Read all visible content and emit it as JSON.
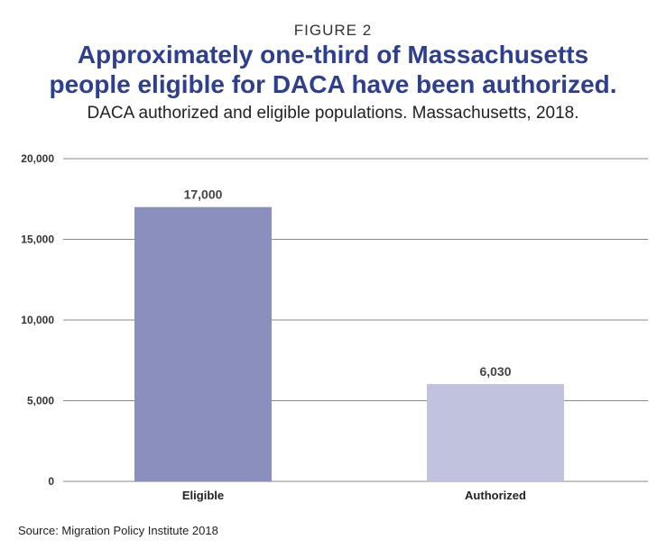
{
  "figure_label": "FIGURE 2",
  "title_line1": "Approximately one-third of Massachusetts",
  "title_line2": "people eligible for DACA have been authorized.",
  "subtitle": "DACA authorized and eligible populations. Massachusetts, 2018.",
  "source": "Source: Migration Policy Institute 2018",
  "chart_data": {
    "type": "bar",
    "title": "Approximately one-third of Massachusetts people eligible for DACA have been authorized.",
    "subtitle": "DACA authorized and eligible populations. Massachusetts, 2018.",
    "categories": [
      "Eligible",
      "Authorized"
    ],
    "values": [
      17000,
      6030
    ],
    "data_labels": [
      "17,000",
      "6,030"
    ],
    "colors": [
      "#8b8fbd",
      "#c1c2de"
    ],
    "xlabel": "",
    "ylabel": "",
    "ylim": [
      0,
      20000
    ],
    "yticks": [
      0,
      5000,
      10000,
      15000,
      20000
    ],
    "ytick_labels": [
      "0",
      "5,000",
      "10,000",
      "15,000",
      "20,000"
    ],
    "grid": true,
    "legend": "none"
  }
}
